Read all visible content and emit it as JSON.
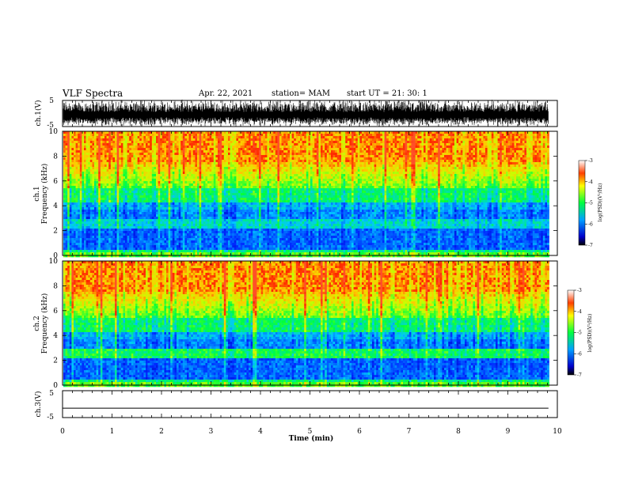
{
  "header": {
    "title": "VLF Spectra",
    "date": "Apr. 22, 2021",
    "station": "station= MAM",
    "start": "start  UT =  21: 30: 1"
  },
  "chart_data": [
    {
      "type": "line",
      "panel": "waveform-ch1",
      "ylabel": "ch.1(V)",
      "yticks": [
        "5",
        "-5"
      ],
      "ylim": [
        -5,
        5
      ],
      "xlim": [
        0,
        10
      ]
    },
    {
      "type": "heatmap",
      "panel": "spectrogram-ch1",
      "ylabel": "ch.1\nFrequency  (kHz)",
      "ylabel_line1": "ch.1",
      "ylabel_line2": "Frequency  (kHz)",
      "yticks": [
        "0",
        "2",
        "4",
        "6",
        "8",
        "10"
      ],
      "ylim": [
        0,
        10
      ],
      "xlim": [
        0,
        10
      ],
      "colorbar": {
        "label": "log(PSD)(V²/Hz)",
        "ticks": [
          "-3",
          "-4",
          "-5",
          "-6",
          "-7"
        ],
        "range": [
          -7,
          -3
        ]
      }
    },
    {
      "type": "heatmap",
      "panel": "spectrogram-ch2",
      "ylabel_line1": "ch.2",
      "ylabel_line2": "Frequency  (kHz)",
      "yticks": [
        "0",
        "2",
        "4",
        "6",
        "8",
        "10"
      ],
      "ylim": [
        0,
        10
      ],
      "xlim": [
        0,
        10
      ],
      "colorbar": {
        "label": "log(PSD)(V²/Hz)",
        "ticks": [
          "-3",
          "-4",
          "-5",
          "-6",
          "-7"
        ],
        "range": [
          -7,
          -3
        ]
      }
    },
    {
      "type": "line",
      "panel": "waveform-ch3",
      "ylabel": "ch.3(V)",
      "yticks": [
        "5",
        "-5"
      ],
      "ylim": [
        -5,
        5
      ],
      "xlim": [
        0,
        10
      ],
      "value": -1.5
    }
  ],
  "xaxis": {
    "label": "Time  (min)",
    "ticks": [
      "0",
      "1",
      "2",
      "3",
      "4",
      "5",
      "6",
      "7",
      "8",
      "9",
      "10"
    ],
    "range": [
      0,
      10
    ],
    "data_end": 9.82
  }
}
